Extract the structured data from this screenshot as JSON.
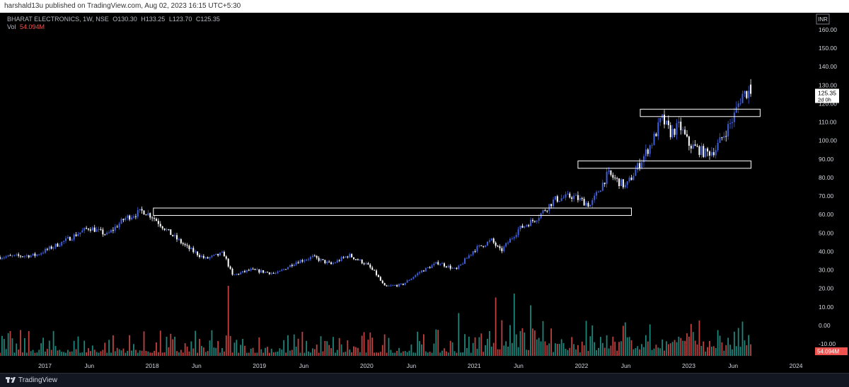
{
  "topbar": {
    "text": "harshald13u published on TradingView.com, Aug 02, 2023 16:15 UTC+5:30"
  },
  "legend": {
    "symbol": "BHARAT ELECTRONICS, 1W, NSE",
    "o_label": "O",
    "o": "130.30",
    "h_label": "H",
    "h": "133.25",
    "l_label": "L",
    "l": "123.70",
    "c_label": "C",
    "c": "125.35",
    "vol_label": "Vol",
    "vol": "54.094M"
  },
  "currency": "INR",
  "price_badge": {
    "value": "125.35",
    "countdown": "2d 0h"
  },
  "vol_badge": "54.094M",
  "footer": {
    "brand": "TradingView"
  },
  "colors": {
    "up": "#3f5ed8",
    "down": "#ffffff",
    "vol_up": "#26a69a",
    "vol_down": "#ef5350",
    "zone": "#ffffff",
    "price_badge": "#ffffff",
    "vol_badge": "#ef5350"
  },
  "chart_data": {
    "type": "candlestick",
    "interval": "1W",
    "y_ticks": [
      "160.00",
      "150.00",
      "140.00",
      "130.00",
      "120.00",
      "110.00",
      "100.00",
      "90.00",
      "80.00",
      "70.00",
      "60.00",
      "50.00",
      "40.00",
      "30.00",
      "20.00",
      "10.00",
      "0.00",
      "-10.00"
    ],
    "y_range": [
      -10,
      160
    ],
    "x_range": [
      "2016-08",
      "2024-03"
    ],
    "x_ticks": [
      {
        "label": "2017",
        "date": "2017-01"
      },
      {
        "label": "Jun",
        "date": "2017-06"
      },
      {
        "label": "2018",
        "date": "2018-01"
      },
      {
        "label": "Jun",
        "date": "2018-06"
      },
      {
        "label": "2019",
        "date": "2019-01"
      },
      {
        "label": "Jun",
        "date": "2019-06"
      },
      {
        "label": "2020",
        "date": "2020-01"
      },
      {
        "label": "Jun",
        "date": "2020-06"
      },
      {
        "label": "2021",
        "date": "2021-01"
      },
      {
        "label": "Jun",
        "date": "2021-06"
      },
      {
        "label": "2022",
        "date": "2022-01"
      },
      {
        "label": "Jun",
        "date": "2022-06"
      },
      {
        "label": "2023",
        "date": "2023-01"
      },
      {
        "label": "Jun",
        "date": "2023-06"
      },
      {
        "label": "2024",
        "date": "2024-01"
      }
    ],
    "price_path": [
      [
        "2016-08",
        37
      ],
      [
        "2016-12",
        38
      ],
      [
        "2017-03",
        45
      ],
      [
        "2017-06",
        53
      ],
      [
        "2017-08",
        49
      ],
      [
        "2017-10",
        58
      ],
      [
        "2017-12",
        62
      ],
      [
        "2018-01",
        59
      ],
      [
        "2018-03",
        50
      ],
      [
        "2018-05",
        42
      ],
      [
        "2018-07",
        36
      ],
      [
        "2018-09",
        39
      ],
      [
        "2018-10",
        27
      ],
      [
        "2018-12",
        30
      ],
      [
        "2019-03",
        28
      ],
      [
        "2019-05",
        34
      ],
      [
        "2019-07",
        37
      ],
      [
        "2019-09",
        33
      ],
      [
        "2019-11",
        38
      ],
      [
        "2020-01",
        33
      ],
      [
        "2020-02",
        28
      ],
      [
        "2020-03",
        21
      ],
      [
        "2020-05",
        22
      ],
      [
        "2020-07",
        29
      ],
      [
        "2020-09",
        34
      ],
      [
        "2020-11",
        30
      ],
      [
        "2021-01",
        41
      ],
      [
        "2021-03",
        46
      ],
      [
        "2021-04",
        40
      ],
      [
        "2021-06",
        52
      ],
      [
        "2021-08",
        58
      ],
      [
        "2021-10",
        68
      ],
      [
        "2021-12",
        70
      ],
      [
        "2022-02",
        65
      ],
      [
        "2022-04",
        82
      ],
      [
        "2022-06",
        75
      ],
      [
        "2022-07",
        83
      ],
      [
        "2022-09",
        100
      ],
      [
        "2022-10",
        112
      ],
      [
        "2022-11",
        104
      ],
      [
        "2022-12",
        108
      ],
      [
        "2023-01",
        98
      ],
      [
        "2023-03",
        93
      ],
      [
        "2023-04",
        95
      ],
      [
        "2023-06",
        112
      ],
      [
        "2023-07",
        125
      ],
      [
        "2023-08",
        127
      ]
    ],
    "annotation_zones": [
      {
        "from": "2018-01-05",
        "to": "2022-06-20",
        "bottom": 59.5,
        "top": 63.5
      },
      {
        "from": "2021-12-20",
        "to": "2023-08-01",
        "bottom": 85,
        "top": 89
      },
      {
        "from": "2022-07-20",
        "to": "2023-09-01",
        "bottom": 113,
        "top": 117
      }
    ],
    "volume_spikes": [
      {
        "date": "2018-09-20",
        "ratio": 0.9
      },
      {
        "date": "2021-03-15",
        "ratio": 0.75
      },
      {
        "date": "2021-05-20",
        "ratio": 0.8
      },
      {
        "date": "2021-07-15",
        "ratio": 0.65
      },
      {
        "date": "2020-11-10",
        "ratio": 0.55
      },
      {
        "date": "2022-01-20",
        "ratio": 0.45
      }
    ],
    "last_volume": "54.094M"
  }
}
